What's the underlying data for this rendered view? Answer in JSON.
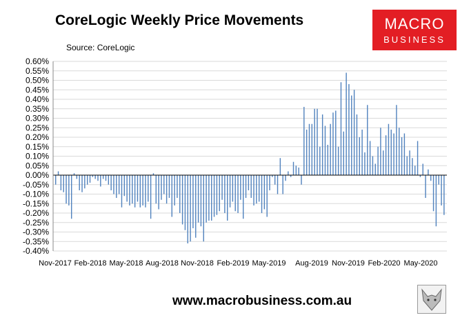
{
  "header": {
    "title": "CoreLogic Weekly Price Movements",
    "source": "Source: CoreLogic"
  },
  "logo": {
    "line1": "MACRO",
    "line2": "BUSINESS",
    "color": "#e31e24"
  },
  "footer": {
    "url": "www.macrobusiness.com.au"
  },
  "chart_data": {
    "type": "bar",
    "title": "CoreLogic Weekly Price Movements",
    "xlabel": "",
    "ylabel": "",
    "ylim": [
      -0.4,
      0.6
    ],
    "y_ticks": [
      "-0.40%",
      "-0.35%",
      "-0.30%",
      "-0.25%",
      "-0.20%",
      "-0.15%",
      "-0.10%",
      "-0.05%",
      "0.00%",
      "0.05%",
      "0.10%",
      "0.15%",
      "0.20%",
      "0.25%",
      "0.30%",
      "0.35%",
      "0.40%",
      "0.45%",
      "0.50%",
      "0.55%",
      "0.60%"
    ],
    "x_ticks": [
      "Nov-2017",
      "Feb-2018",
      "May-2018",
      "Aug-2018",
      "Nov-2018",
      "Feb-2019",
      "May-2019",
      "Aug-2019",
      "Nov-2019",
      "Feb-2020",
      "May-2020"
    ],
    "grid": true,
    "bar_color": "#4f81bd",
    "values": [
      -0.05,
      0.02,
      -0.08,
      -0.09,
      -0.15,
      -0.16,
      -0.23,
      0.01,
      -0.02,
      -0.08,
      -0.09,
      -0.07,
      -0.05,
      -0.04,
      -0.01,
      -0.02,
      -0.03,
      -0.06,
      -0.02,
      -0.03,
      -0.05,
      -0.08,
      -0.1,
      -0.12,
      -0.1,
      -0.17,
      -0.11,
      -0.14,
      -0.16,
      -0.15,
      -0.17,
      -0.14,
      -0.17,
      -0.16,
      -0.17,
      -0.14,
      -0.23,
      0.01,
      -0.15,
      -0.18,
      -0.13,
      -0.1,
      -0.15,
      -0.12,
      -0.22,
      -0.16,
      -0.12,
      -0.2,
      -0.26,
      -0.29,
      -0.36,
      -0.35,
      -0.28,
      -0.33,
      -0.25,
      -0.27,
      -0.35,
      -0.25,
      -0.24,
      -0.24,
      -0.22,
      -0.21,
      -0.19,
      -0.13,
      -0.2,
      -0.24,
      -0.17,
      -0.14,
      -0.19,
      -0.2,
      -0.13,
      -0.23,
      -0.12,
      -0.08,
      -0.12,
      -0.16,
      -0.15,
      -0.14,
      -0.2,
      -0.18,
      -0.22,
      -0.08,
      -0.01,
      -0.05,
      -0.1,
      0.09,
      -0.1,
      -0.03,
      0.02,
      -0.01,
      0.07,
      0.05,
      0.04,
      -0.05,
      0.36,
      0.24,
      0.27,
      0.27,
      0.35,
      0.35,
      0.15,
      0.32,
      0.26,
      0.16,
      0.27,
      0.33,
      0.34,
      0.15,
      0.49,
      0.23,
      0.54,
      0.48,
      0.42,
      0.45,
      0.32,
      0.2,
      0.24,
      0.12,
      0.37,
      0.18,
      0.1,
      0.06,
      0.15,
      0.25,
      0.13,
      0.21,
      0.27,
      0.24,
      0.22,
      0.37,
      0.25,
      0.2,
      0.22,
      0.1,
      0.13,
      0.09,
      0.05,
      0.18,
      -0.01,
      0.06,
      -0.12,
      0.03,
      -0.03,
      -0.19,
      -0.27,
      -0.05,
      -0.16,
      -0.21
    ]
  }
}
